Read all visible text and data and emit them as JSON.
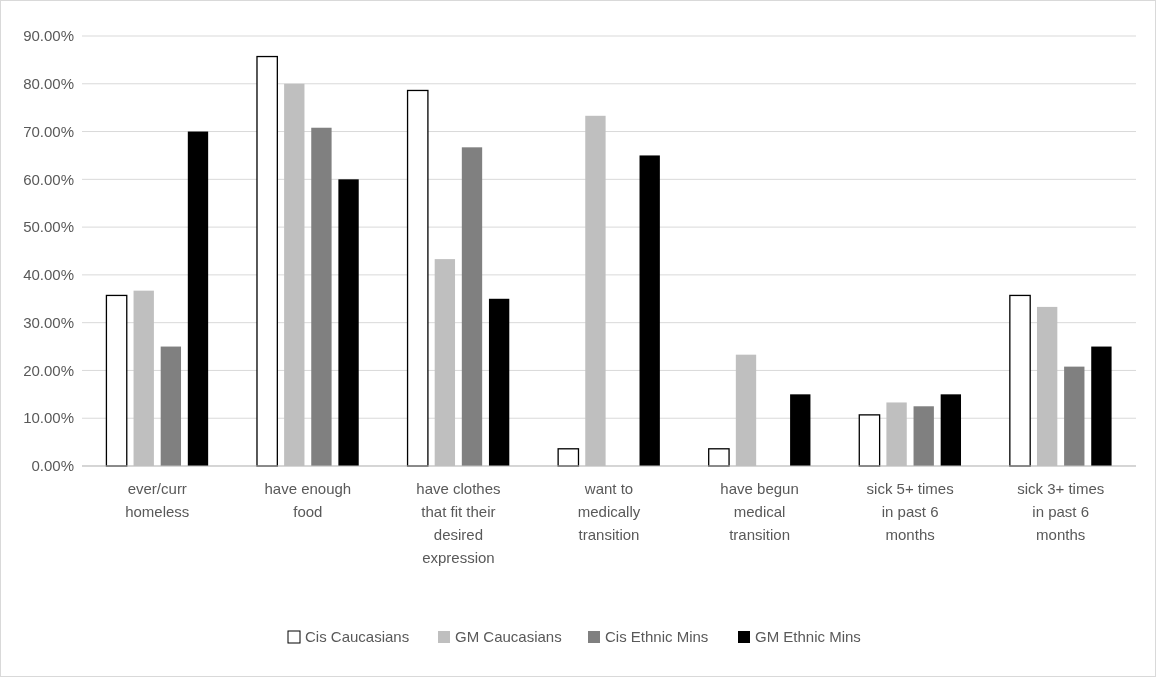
{
  "chart_data": {
    "type": "bar",
    "categories": [
      "ever/curr homeless",
      "have enough food",
      "have clothes that fit their desired expression",
      "want to medically transition",
      "have begun medical transition",
      "sick 5+ times in past 6 months",
      "sick 3+ times in past 6 months"
    ],
    "series": [
      {
        "name": "Cis Caucasians",
        "color": "#ffffff",
        "values": [
          35.7,
          85.7,
          78.6,
          3.6,
          3.6,
          10.7,
          35.7
        ]
      },
      {
        "name": "GM Caucasians",
        "color": "#bfbfbf",
        "values": [
          36.7,
          80,
          43.3,
          73.3,
          23.3,
          13.3,
          33.3
        ]
      },
      {
        "name": "Cis Ethnic Mins",
        "color": "#808080",
        "values": [
          25,
          70.8,
          66.7,
          0,
          0,
          12.5,
          20.8
        ]
      },
      {
        "name": "GM Ethnic Mins",
        "color": "#000000",
        "values": [
          70,
          60,
          35,
          65,
          15,
          15,
          25
        ]
      }
    ],
    "ylim": [
      0,
      90
    ],
    "yticks": [
      {
        "value": 0,
        "label": "0.00%"
      },
      {
        "value": 10,
        "label": "10.00%"
      },
      {
        "value": 20,
        "label": "20.00%"
      },
      {
        "value": 30,
        "label": "30.00%"
      },
      {
        "value": 40,
        "label": "40.00%"
      },
      {
        "value": 50,
        "label": "50.00%"
      },
      {
        "value": 60,
        "label": "60.00%"
      },
      {
        "value": 70,
        "label": "70.00%"
      },
      {
        "value": 80,
        "label": "80.00%"
      },
      {
        "value": 90,
        "label": "90.00%"
      }
    ],
    "grid": "y",
    "legend": "bottom"
  }
}
